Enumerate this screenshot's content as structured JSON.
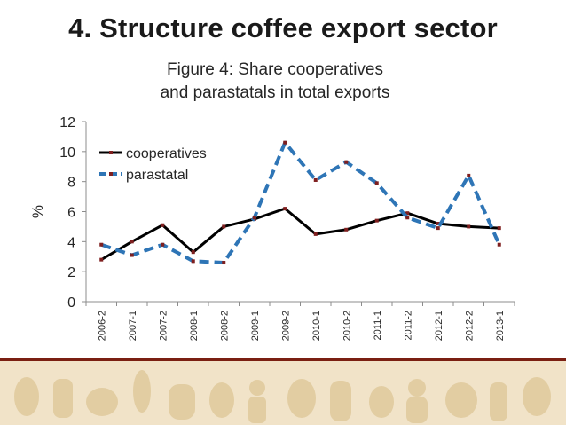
{
  "slide": {
    "title": "4. Structure coffee export sector"
  },
  "colors": {
    "cooperatives": "#000000",
    "parastatal": "#2e75b6",
    "marker": "#7f1f1f",
    "footer_rule": "#7a1f12",
    "footer_band": "#f1e3c8",
    "footer_motif": "#e2cda2"
  },
  "chart_data": {
    "type": "line",
    "title_lines": [
      "Figure 4: Share cooperatives",
      "and parastatals in total exports"
    ],
    "xlabel": "",
    "ylabel": "%",
    "ylim": [
      0,
      12
    ],
    "yticks": [
      0,
      2,
      4,
      6,
      8,
      10,
      12
    ],
    "grid": false,
    "legend_position": "top-left",
    "categories": [
      "2006-2",
      "2007-1",
      "2007-2",
      "2008-1",
      "2008-2",
      "2009-1",
      "2009-2",
      "2010-1",
      "2010-2",
      "2011-1",
      "2011-2",
      "2012-1",
      "2012-2",
      "2013-1"
    ],
    "series": [
      {
        "name": "cooperatives",
        "style": "solid",
        "values": [
          2.8,
          4.0,
          5.1,
          3.3,
          5.0,
          5.5,
          6.2,
          4.5,
          4.8,
          5.4,
          5.9,
          5.2,
          5.0,
          4.9
        ]
      },
      {
        "name": "parastatal",
        "style": "dashed",
        "values": [
          3.8,
          3.1,
          3.8,
          2.7,
          2.6,
          5.6,
          10.6,
          8.1,
          9.3,
          7.9,
          5.6,
          4.9,
          8.4,
          3.8
        ]
      }
    ]
  }
}
